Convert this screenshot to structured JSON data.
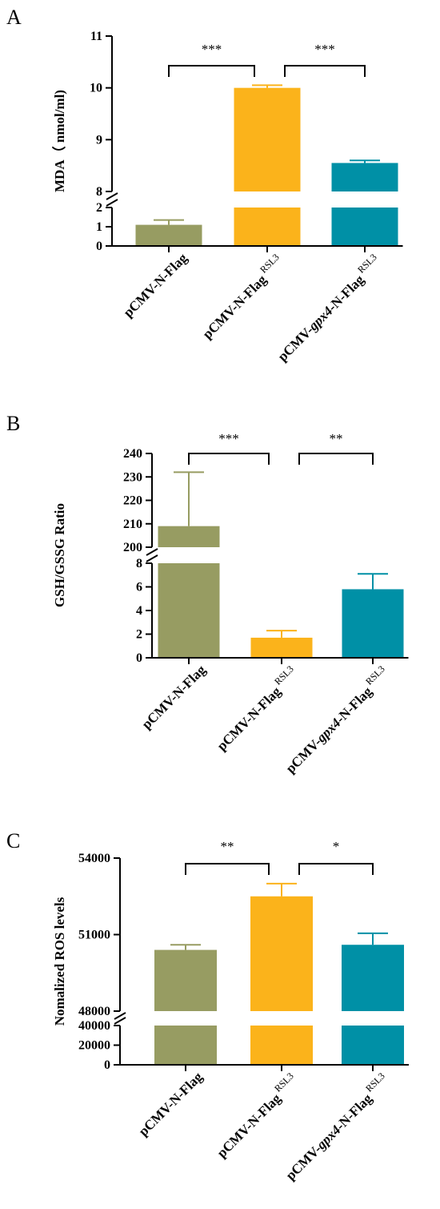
{
  "colors": {
    "green": "#979c62",
    "orange": "#fbb31b",
    "teal": "#0090a6",
    "axis": "#000000"
  },
  "chart_data": [
    {
      "panel": "A",
      "type": "bar",
      "ylabel": "MDA（ nmol/ml)",
      "categories": [
        {
          "prefix": "pCMV-N-Flag",
          "italic": "",
          "suffix": "",
          "sup": ""
        },
        {
          "prefix": "pCMV-N-Flag",
          "italic": "",
          "suffix": "",
          "sup": "RSL3"
        },
        {
          "prefix": "pCMV-",
          "italic": "gpx4",
          "suffix": "-N-Flag",
          "sup": "RSL3"
        }
      ],
      "values": [
        1.1,
        10.0,
        8.55
      ],
      "errors": [
        0.25,
        0.05,
        0.05
      ],
      "colors": [
        "green",
        "orange",
        "teal"
      ],
      "segments": [
        {
          "range": [
            0,
            2
          ],
          "ticks": [
            0,
            1,
            2
          ]
        },
        {
          "range": [
            8,
            11
          ],
          "ticks": [
            8,
            9,
            10,
            11
          ]
        }
      ],
      "significance": [
        {
          "from": 0,
          "to": 1,
          "label": "***"
        },
        {
          "from": 1,
          "to": 2,
          "label": "***"
        }
      ]
    },
    {
      "panel": "B",
      "type": "bar",
      "ylabel": "GSH/GSSG Ratio",
      "categories": [
        {
          "prefix": "pCMV-N-Flag",
          "italic": "",
          "suffix": "",
          "sup": ""
        },
        {
          "prefix": "pCMV-N-Flag",
          "italic": "",
          "suffix": "",
          "sup": "RSL3"
        },
        {
          "prefix": "pCMV-",
          "italic": "gpx4",
          "suffix": "-N-Flag",
          "sup": "RSL3"
        }
      ],
      "values": [
        209,
        1.7,
        5.8
      ],
      "errors": [
        23,
        0.6,
        1.3
      ],
      "colors": [
        "green",
        "orange",
        "teal"
      ],
      "segments": [
        {
          "range": [
            0,
            8
          ],
          "ticks": [
            0,
            2,
            4,
            6,
            8
          ]
        },
        {
          "range": [
            200,
            240
          ],
          "ticks": [
            200,
            210,
            220,
            230,
            240
          ]
        }
      ],
      "significance": [
        {
          "from": 0,
          "to": 1,
          "label": "***"
        },
        {
          "from": 1,
          "to": 2,
          "label": "**"
        }
      ]
    },
    {
      "panel": "C",
      "type": "bar",
      "ylabel": "Nomalized ROS levels",
      "categories": [
        {
          "prefix": "pCMV-N-Flag",
          "italic": "",
          "suffix": "",
          "sup": ""
        },
        {
          "prefix": "pCMV-N-Flag",
          "italic": "",
          "suffix": "",
          "sup": "RSL3"
        },
        {
          "prefix": "pCMV-",
          "italic": "gpx4",
          "suffix": "-N-Flag",
          "sup": "RSL3"
        }
      ],
      "values": [
        50400,
        52500,
        50600
      ],
      "errors": [
        200,
        500,
        450
      ],
      "colors": [
        "green",
        "orange",
        "teal"
      ],
      "segments": [
        {
          "range": [
            0,
            40000
          ],
          "ticks": [
            0,
            20000,
            40000
          ]
        },
        {
          "range": [
            48000,
            54000
          ],
          "ticks": [
            48000,
            51000,
            54000
          ]
        }
      ],
      "significance": [
        {
          "from": 0,
          "to": 1,
          "label": "**"
        },
        {
          "from": 1,
          "to": 2,
          "label": "*"
        }
      ]
    }
  ]
}
